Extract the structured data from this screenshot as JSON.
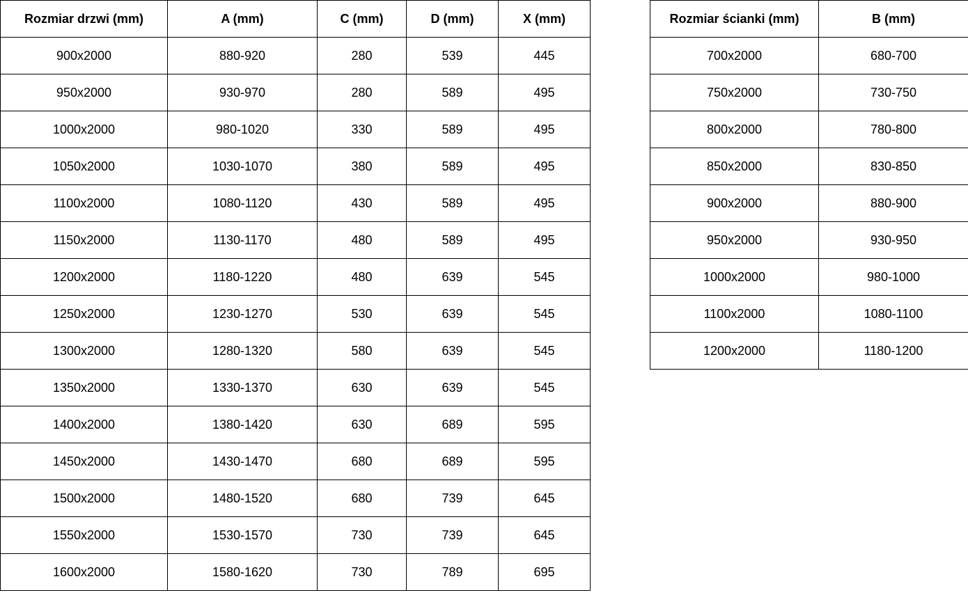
{
  "page": {
    "background_color": "#ffffff",
    "text_color": "#000000",
    "border_color": "#000000"
  },
  "door_table": {
    "headers": [
      "Rozmiar drzwi (mm)",
      "A (mm)",
      "C (mm)",
      "D (mm)",
      "X (mm)"
    ],
    "rows": [
      [
        "900x2000",
        "880-920",
        "280",
        "539",
        "445"
      ],
      [
        "950x2000",
        "930-970",
        "280",
        "589",
        "495"
      ],
      [
        "1000x2000",
        "980-1020",
        "330",
        "589",
        "495"
      ],
      [
        "1050x2000",
        "1030-1070",
        "380",
        "589",
        "495"
      ],
      [
        "1100x2000",
        "1080-1120",
        "430",
        "589",
        "495"
      ],
      [
        "1150x2000",
        "1130-1170",
        "480",
        "589",
        "495"
      ],
      [
        "1200x2000",
        "1180-1220",
        "480",
        "639",
        "545"
      ],
      [
        "1250x2000",
        "1230-1270",
        "530",
        "639",
        "545"
      ],
      [
        "1300x2000",
        "1280-1320",
        "580",
        "639",
        "545"
      ],
      [
        "1350x2000",
        "1330-1370",
        "630",
        "639",
        "545"
      ],
      [
        "1400x2000",
        "1380-1420",
        "630",
        "689",
        "595"
      ],
      [
        "1450x2000",
        "1430-1470",
        "680",
        "689",
        "595"
      ],
      [
        "1500x2000",
        "1480-1520",
        "680",
        "739",
        "645"
      ],
      [
        "1550x2000",
        "1530-1570",
        "730",
        "739",
        "645"
      ],
      [
        "1600x2000",
        "1580-1620",
        "730",
        "789",
        "695"
      ]
    ]
  },
  "wall_table": {
    "headers": [
      "Rozmiar ścianki (mm)",
      "B (mm)"
    ],
    "rows": [
      [
        "700x2000",
        "680-700"
      ],
      [
        "750x2000",
        "730-750"
      ],
      [
        "800x2000",
        "780-800"
      ],
      [
        "850x2000",
        "830-850"
      ],
      [
        "900x2000",
        "880-900"
      ],
      [
        "950x2000",
        "930-950"
      ],
      [
        "1000x2000",
        "980-1000"
      ],
      [
        "1100x2000",
        "1080-1100"
      ],
      [
        "1200x2000",
        "1180-1200"
      ]
    ]
  }
}
